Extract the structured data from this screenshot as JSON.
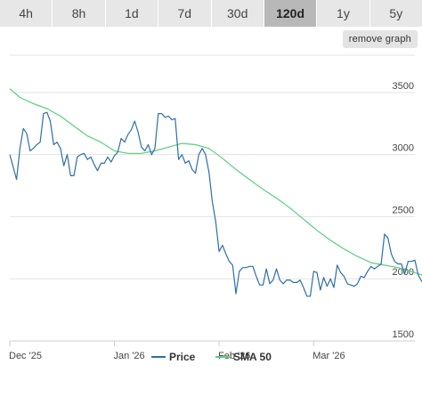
{
  "tabs": [
    {
      "label": "4h",
      "active": false
    },
    {
      "label": "8h",
      "active": false
    },
    {
      "label": "1d",
      "active": false
    },
    {
      "label": "7d",
      "active": false
    },
    {
      "label": "30d",
      "active": false
    },
    {
      "label": "120d",
      "active": true
    },
    {
      "label": "1y",
      "active": false
    },
    {
      "label": "5y",
      "active": false
    }
  ],
  "remove_graph_label": "remove graph",
  "colors": {
    "price": "#2d6fa8",
    "sma": "#58d07e",
    "grid": "#e3e3e3",
    "tab_bg": "#e7e7e7",
    "tab_active_bg": "#b8b8b8"
  },
  "chart_data": {
    "type": "line",
    "title": "",
    "xlabel": "",
    "ylabel": "",
    "x_domain": [
      "2025-12-01",
      "2026-03-31"
    ],
    "ylim": [
      1500,
      3800
    ],
    "y_ticks": [
      1500,
      2000,
      2500,
      3000,
      3500
    ],
    "y_tick_labels": [
      "1500",
      "2000",
      "2500",
      "3000",
      "3500"
    ],
    "x_ticks": [
      {
        "date": "2025-12-01",
        "label": "Dec '25"
      },
      {
        "date": "2026-01-01",
        "label": "Jan '26"
      },
      {
        "date": "2026-02-01",
        "label": "Feb '26"
      },
      {
        "date": "2026-03-01",
        "label": "Mar '26"
      }
    ],
    "grid": true,
    "legend_position": "bottom",
    "series": [
      {
        "name": "Price",
        "points": [
          [
            "2025-12-01",
            3000
          ],
          [
            "2025-12-02",
            2900
          ],
          [
            "2025-12-03",
            2800
          ],
          [
            "2025-12-04",
            3050
          ],
          [
            "2025-12-05",
            3210
          ],
          [
            "2025-12-06",
            3170
          ],
          [
            "2025-12-07",
            3030
          ],
          [
            "2025-12-08",
            3050
          ],
          [
            "2025-12-09",
            3080
          ],
          [
            "2025-12-10",
            3100
          ],
          [
            "2025-12-11",
            3330
          ],
          [
            "2025-12-12",
            3340
          ],
          [
            "2025-12-13",
            3270
          ],
          [
            "2025-12-14",
            3080
          ],
          [
            "2025-12-15",
            3100
          ],
          [
            "2025-12-16",
            3050
          ],
          [
            "2025-12-17",
            2910
          ],
          [
            "2025-12-18",
            3000
          ],
          [
            "2025-12-19",
            2830
          ],
          [
            "2025-12-20",
            2830
          ],
          [
            "2025-12-21",
            2980
          ],
          [
            "2025-12-22",
            3000
          ],
          [
            "2025-12-23",
            3010
          ],
          [
            "2025-12-24",
            2960
          ],
          [
            "2025-12-25",
            2980
          ],
          [
            "2025-12-26",
            2920
          ],
          [
            "2025-12-27",
            2870
          ],
          [
            "2025-12-28",
            2930
          ],
          [
            "2025-12-29",
            2930
          ],
          [
            "2025-12-30",
            2980
          ],
          [
            "2025-12-31",
            2940
          ],
          [
            "2026-01-01",
            2990
          ],
          [
            "2026-01-02",
            3020
          ],
          [
            "2026-01-03",
            3130
          ],
          [
            "2026-01-04",
            3100
          ],
          [
            "2026-01-05",
            3160
          ],
          [
            "2026-01-06",
            3200
          ],
          [
            "2026-01-07",
            3270
          ],
          [
            "2026-01-08",
            3180
          ],
          [
            "2026-01-09",
            3060
          ],
          [
            "2026-01-10",
            3030
          ],
          [
            "2026-01-11",
            3080
          ],
          [
            "2026-01-12",
            3000
          ],
          [
            "2026-01-13",
            3050
          ],
          [
            "2026-01-14",
            3330
          ],
          [
            "2026-01-15",
            3330
          ],
          [
            "2026-01-16",
            3300
          ],
          [
            "2026-01-17",
            3310
          ],
          [
            "2026-01-18",
            3280
          ],
          [
            "2026-01-19",
            3290
          ],
          [
            "2026-01-20",
            2960
          ],
          [
            "2026-01-21",
            3000
          ],
          [
            "2026-01-22",
            2930
          ],
          [
            "2026-01-23",
            2950
          ],
          [
            "2026-01-24",
            2880
          ],
          [
            "2026-01-25",
            2850
          ],
          [
            "2026-01-26",
            3000
          ],
          [
            "2026-01-27",
            3050
          ],
          [
            "2026-01-28",
            3000
          ],
          [
            "2026-01-29",
            2860
          ],
          [
            "2026-01-30",
            2620
          ],
          [
            "2026-01-31",
            2460
          ],
          [
            "2026-02-01",
            2220
          ],
          [
            "2026-02-02",
            2270
          ],
          [
            "2026-02-03",
            2200
          ],
          [
            "2026-02-04",
            2140
          ],
          [
            "2026-02-05",
            2110
          ],
          [
            "2026-02-06",
            1880
          ],
          [
            "2026-02-07",
            2060
          ],
          [
            "2026-02-08",
            2090
          ],
          [
            "2026-02-09",
            2090
          ],
          [
            "2026-02-10",
            2100
          ],
          [
            "2026-02-11",
            2100
          ],
          [
            "2026-02-12",
            2020
          ],
          [
            "2026-02-13",
            1950
          ],
          [
            "2026-02-14",
            1950
          ],
          [
            "2026-02-15",
            2080
          ],
          [
            "2026-02-16",
            1960
          ],
          [
            "2026-02-17",
            1990
          ],
          [
            "2026-02-18",
            2080
          ],
          [
            "2026-02-19",
            1990
          ],
          [
            "2026-02-20",
            1960
          ],
          [
            "2026-02-21",
            1990
          ],
          [
            "2026-02-22",
            1990
          ],
          [
            "2026-02-23",
            1970
          ],
          [
            "2026-02-24",
            1970
          ],
          [
            "2026-02-25",
            1990
          ],
          [
            "2026-02-26",
            1930
          ],
          [
            "2026-02-27",
            1860
          ],
          [
            "2026-02-28",
            1860
          ],
          [
            "2026-03-01",
            2060
          ],
          [
            "2026-03-02",
            2050
          ],
          [
            "2026-03-03",
            1910
          ],
          [
            "2026-03-04",
            2010
          ],
          [
            "2026-03-05",
            1940
          ],
          [
            "2026-03-06",
            2000
          ],
          [
            "2026-03-07",
            1930
          ],
          [
            "2026-03-08",
            2110
          ],
          [
            "2026-03-09",
            2050
          ],
          [
            "2026-03-10",
            2020
          ],
          [
            "2026-03-11",
            1960
          ],
          [
            "2026-03-12",
            1950
          ],
          [
            "2026-03-13",
            1940
          ],
          [
            "2026-03-14",
            1960
          ],
          [
            "2026-03-15",
            2020
          ],
          [
            "2026-03-16",
            2010
          ],
          [
            "2026-03-17",
            2060
          ],
          [
            "2026-03-18",
            2100
          ],
          [
            "2026-03-19",
            2080
          ],
          [
            "2026-03-20",
            2100
          ],
          [
            "2026-03-21",
            2120
          ],
          [
            "2026-03-22",
            2360
          ],
          [
            "2026-03-23",
            2330
          ],
          [
            "2026-03-24",
            2200
          ],
          [
            "2026-03-25",
            2140
          ],
          [
            "2026-03-26",
            2120
          ],
          [
            "2026-03-27",
            2120
          ],
          [
            "2026-03-28",
            2040
          ],
          [
            "2026-03-29",
            2140
          ],
          [
            "2026-03-30",
            2140
          ],
          [
            "2026-03-31",
            2150
          ],
          [
            "2026-04-01",
            2030
          ],
          [
            "2026-04-02",
            1980
          ],
          [
            "2026-04-03",
            2000
          ]
        ]
      },
      {
        "name": "SMA 50",
        "points": [
          [
            "2025-12-01",
            3530
          ],
          [
            "2025-12-04",
            3460
          ],
          [
            "2025-12-08",
            3410
          ],
          [
            "2025-12-12",
            3370
          ],
          [
            "2025-12-16",
            3310
          ],
          [
            "2025-12-20",
            3230
          ],
          [
            "2025-12-24",
            3150
          ],
          [
            "2025-12-28",
            3100
          ],
          [
            "2026-01-01",
            3030
          ],
          [
            "2026-01-05",
            3010
          ],
          [
            "2026-01-09",
            3010
          ],
          [
            "2026-01-13",
            3030
          ],
          [
            "2026-01-17",
            3060
          ],
          [
            "2026-01-21",
            3090
          ],
          [
            "2026-01-25",
            3080
          ],
          [
            "2026-01-29",
            3050
          ],
          [
            "2026-02-02",
            2970
          ],
          [
            "2026-02-06",
            2880
          ],
          [
            "2026-02-10",
            2800
          ],
          [
            "2026-02-14",
            2720
          ],
          [
            "2026-02-18",
            2650
          ],
          [
            "2026-02-22",
            2570
          ],
          [
            "2026-02-26",
            2480
          ],
          [
            "2026-03-02",
            2390
          ],
          [
            "2026-03-06",
            2310
          ],
          [
            "2026-03-10",
            2240
          ],
          [
            "2026-03-14",
            2180
          ],
          [
            "2026-03-18",
            2130
          ],
          [
            "2026-03-22",
            2110
          ],
          [
            "2026-03-26",
            2090
          ],
          [
            "2026-03-30",
            2060
          ],
          [
            "2026-04-03",
            2020
          ]
        ]
      }
    ]
  }
}
